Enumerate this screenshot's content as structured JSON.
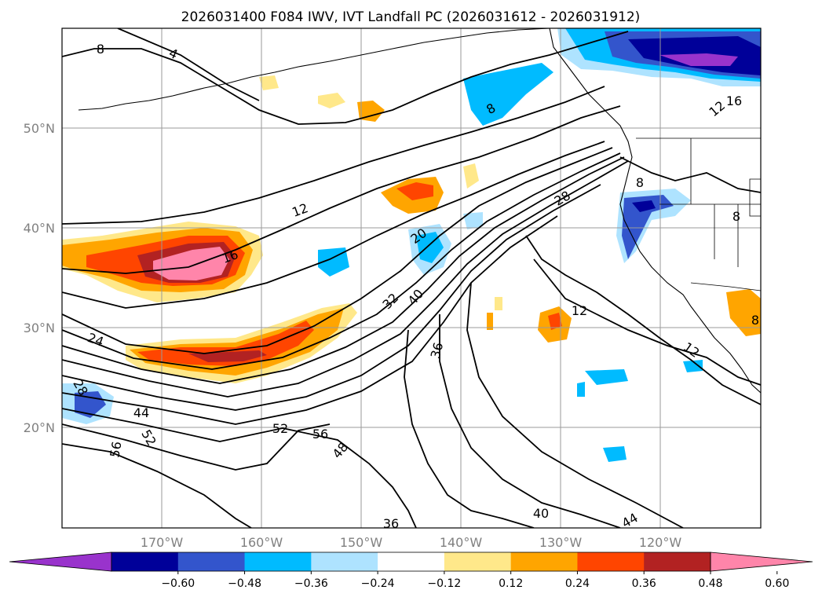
{
  "title": "2026031400 F084 IWV, IVT Landfall PC (2026031612 - 2026031912)",
  "map": {
    "lon_labels": [
      "170°W",
      "160°W",
      "150°W",
      "140°W",
      "130°W",
      "120°W"
    ],
    "lat_labels": [
      "50°N",
      "40°N",
      "30°N",
      "20°N"
    ],
    "contour_labels": [
      {
        "id": "c8a",
        "text": "8"
      },
      {
        "id": "c4",
        "text": "4"
      },
      {
        "id": "c8b",
        "text": "8"
      },
      {
        "id": "c8c",
        "text": "8"
      },
      {
        "id": "c16a",
        "text": "16"
      },
      {
        "id": "c12a",
        "text": "12"
      },
      {
        "id": "c12b",
        "text": "12"
      },
      {
        "id": "c16b",
        "text": "16"
      },
      {
        "id": "c12c",
        "text": "12"
      },
      {
        "id": "c20",
        "text": "20"
      },
      {
        "id": "c28a",
        "text": "28"
      },
      {
        "id": "c32",
        "text": "32"
      },
      {
        "id": "c40a",
        "text": "40"
      },
      {
        "id": "c36a",
        "text": "36"
      },
      {
        "id": "c12d",
        "text": "12"
      },
      {
        "id": "c24",
        "text": "24"
      },
      {
        "id": "c28b",
        "text": "28"
      },
      {
        "id": "c44a",
        "text": "44"
      },
      {
        "id": "c52a",
        "text": "52"
      },
      {
        "id": "c56a",
        "text": "56"
      },
      {
        "id": "c52b",
        "text": "52"
      },
      {
        "id": "c56b",
        "text": "56"
      },
      {
        "id": "c48",
        "text": "48"
      },
      {
        "id": "c36b",
        "text": "36"
      },
      {
        "id": "c40b",
        "text": "40"
      },
      {
        "id": "c44b",
        "text": "44"
      },
      {
        "id": "c8d",
        "text": "8"
      },
      {
        "id": "c8e",
        "text": "8"
      }
    ]
  },
  "colorbar": {
    "colors": [
      "#9933cc",
      "#000099",
      "#3355cc",
      "#00bbff",
      "#aee3ff",
      "#ffffff",
      "#ffe88a",
      "#ffa500",
      "#ff4500",
      "#b22222",
      "#ff85aa"
    ],
    "tick_labels": [
      "−0.60",
      "−0.48",
      "−0.36",
      "−0.24",
      "−0.12",
      "0.12",
      "0.24",
      "0.36",
      "0.48",
      "0.60"
    ]
  }
}
